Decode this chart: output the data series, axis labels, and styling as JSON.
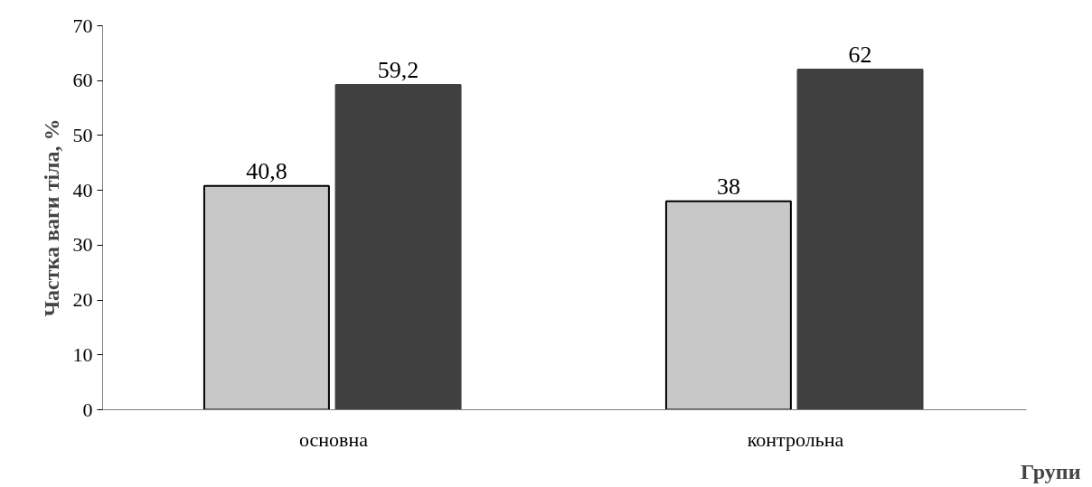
{
  "chart_data": {
    "type": "bar",
    "ylabel": "Частка ваги тіла, %",
    "xlabel": "Групи",
    "categories": [
      "основна",
      "контрольна"
    ],
    "series": [
      {
        "color": "#c8c8c8",
        "values": [
          40.8,
          38
        ],
        "value_labels": [
          "40,8",
          "38"
        ]
      },
      {
        "color": "#404040",
        "values": [
          59.2,
          62
        ],
        "value_labels": [
          "59,2",
          "62"
        ]
      }
    ],
    "ylim": [
      0,
      70
    ],
    "yticks": [
      0,
      10,
      20,
      30,
      40,
      50,
      60,
      70
    ],
    "grid": false
  }
}
